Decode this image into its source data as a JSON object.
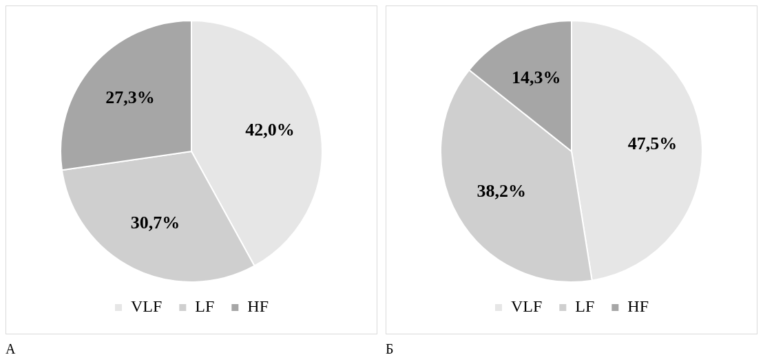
{
  "chart_data": [
    {
      "type": "pie",
      "categories": [
        "VLF",
        "LF",
        "HF"
      ],
      "values": [
        42.0,
        30.7,
        27.3
      ],
      "value_labels": [
        "42,0%",
        "30,7%",
        "27,3%"
      ],
      "colors": [
        "#e6e6e6",
        "#cfcfcf",
        "#a6a6a6"
      ],
      "legend": "bottom",
      "annotations": [
        "А"
      ]
    },
    {
      "type": "pie",
      "categories": [
        "VLF",
        "LF",
        "HF"
      ],
      "values": [
        47.5,
        38.2,
        14.3
      ],
      "value_labels": [
        "47,5%",
        "38,2%",
        "14,3%"
      ],
      "colors": [
        "#e6e6e6",
        "#cfcfcf",
        "#a6a6a6"
      ],
      "legend": "bottom",
      "annotations": [
        "Б"
      ]
    }
  ]
}
